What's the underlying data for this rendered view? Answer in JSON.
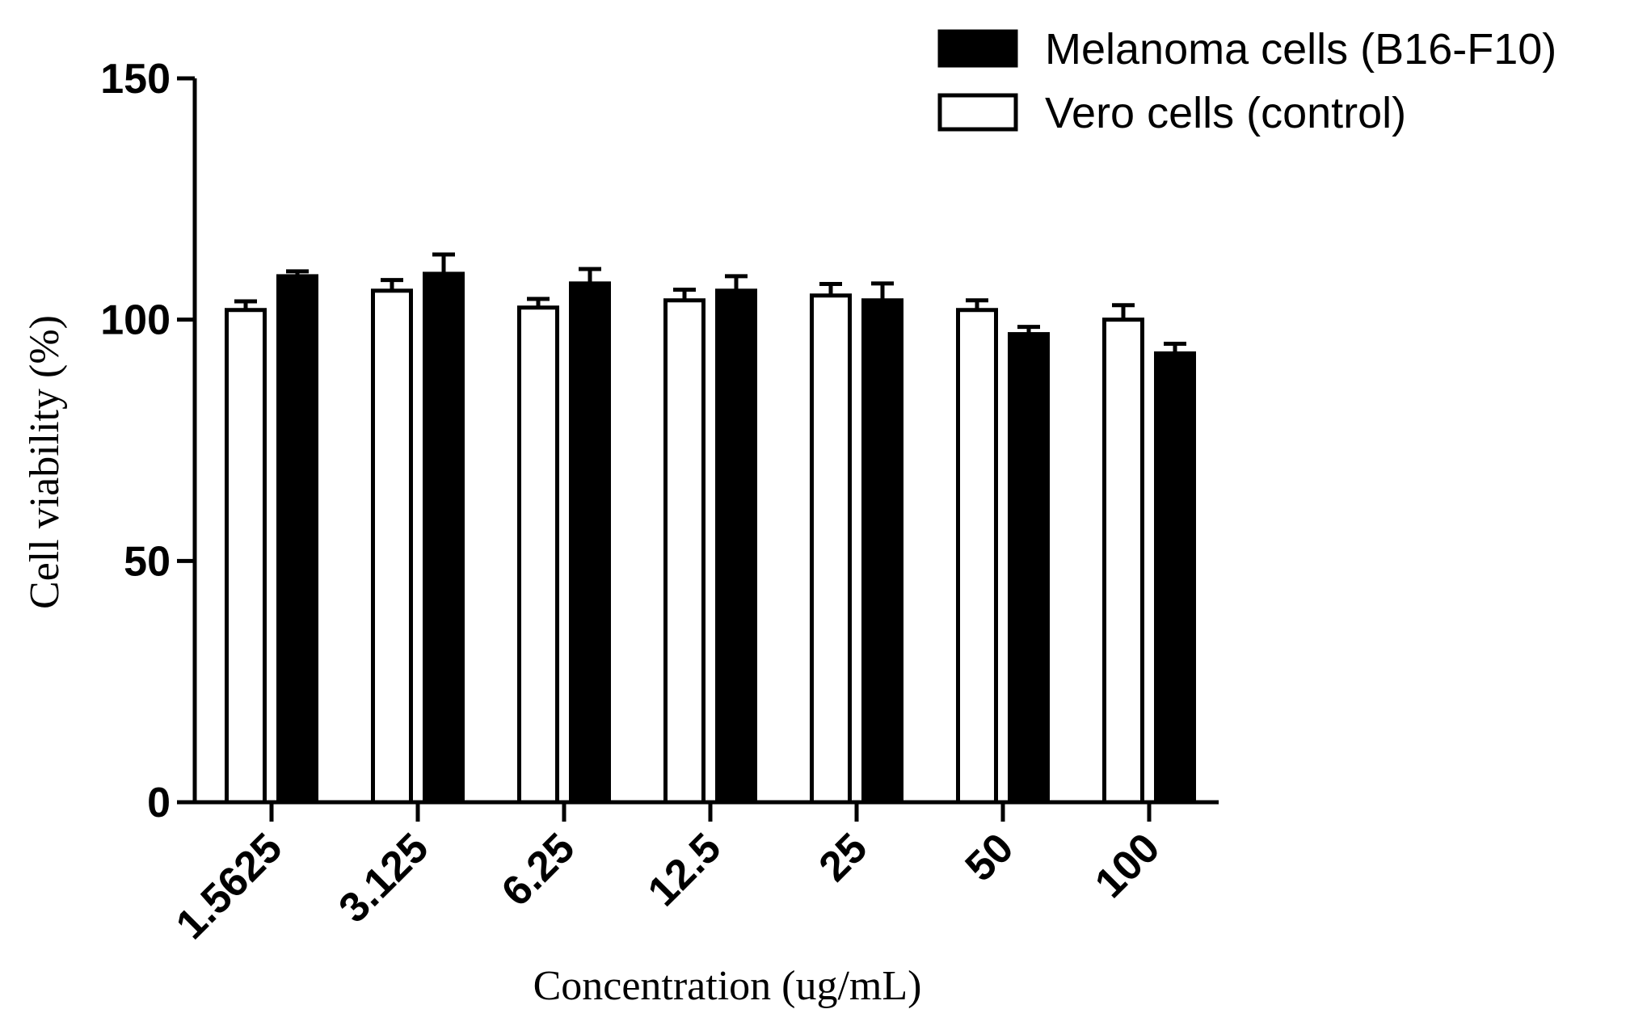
{
  "chart_data": {
    "type": "bar",
    "title": "",
    "xlabel": "Concentration (ug/mL)",
    "ylabel": "Cell viability (%)",
    "ylim": [
      0,
      150
    ],
    "yticks": [
      "0",
      "50",
      "100",
      "150"
    ],
    "grid": false,
    "legend_position": "top-right",
    "categories": [
      "1.5625",
      "3.125",
      "6.25",
      "12.5",
      "25",
      "50",
      "100"
    ],
    "series": [
      {
        "name": "Vero cells (control)",
        "color": "#ffffff",
        "edge_color": "#000000",
        "values": [
          102,
          106,
          102.5,
          104,
          105,
          102,
          100
        ],
        "errors": [
          1.8,
          2.2,
          1.8,
          2.2,
          2.4,
          2.0,
          3.0
        ]
      },
      {
        "name": "Melanoma cells (B16-F10)",
        "color": "#000000",
        "edge_color": "#000000",
        "values": [
          109,
          109.5,
          107.5,
          106,
          104,
          97,
          93
        ],
        "errors": [
          1.0,
          4.0,
          3.0,
          3.0,
          3.5,
          1.5,
          2.0
        ]
      }
    ],
    "legend_order": [
      "Melanoma cells (B16-F10)",
      "Vero cells (control)"
    ]
  }
}
